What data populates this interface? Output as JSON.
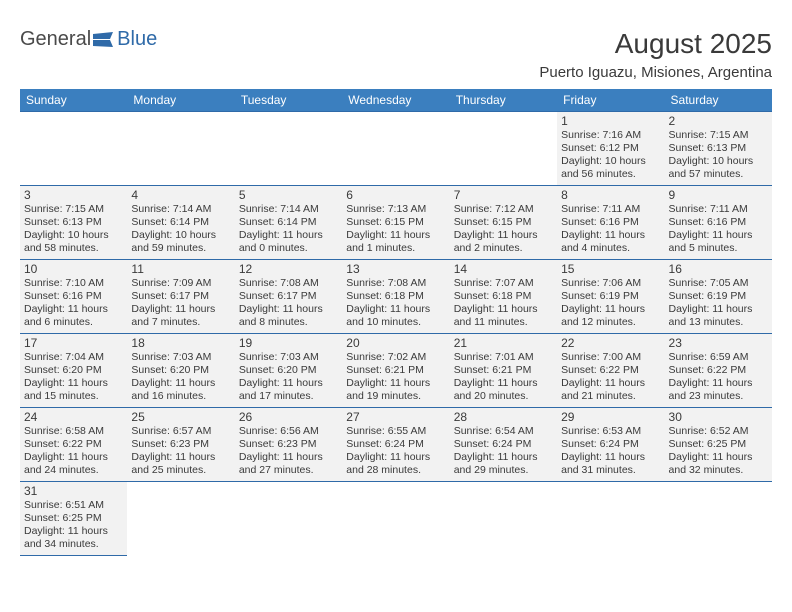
{
  "brand": {
    "a": "General",
    "b": "Blue"
  },
  "title": "August 2025",
  "subtitle": "Puerto Iguazu, Misiones, Argentina",
  "colors": {
    "header_bg": "#3b7fbf",
    "header_text": "#ffffff",
    "cell_bg": "#f2f2f2",
    "border": "#2f6aa8",
    "text": "#3a3a3a",
    "logo_blue": "#2f6aa8"
  },
  "weekday_labels": [
    "Sunday",
    "Monday",
    "Tuesday",
    "Wednesday",
    "Thursday",
    "Friday",
    "Saturday"
  ],
  "first_weekday_index": 5,
  "days": [
    {
      "n": 1,
      "sunrise": "7:16 AM",
      "sunset": "6:12 PM",
      "dl_h": 10,
      "dl_m": 56
    },
    {
      "n": 2,
      "sunrise": "7:15 AM",
      "sunset": "6:13 PM",
      "dl_h": 10,
      "dl_m": 57
    },
    {
      "n": 3,
      "sunrise": "7:15 AM",
      "sunset": "6:13 PM",
      "dl_h": 10,
      "dl_m": 58
    },
    {
      "n": 4,
      "sunrise": "7:14 AM",
      "sunset": "6:14 PM",
      "dl_h": 10,
      "dl_m": 59
    },
    {
      "n": 5,
      "sunrise": "7:14 AM",
      "sunset": "6:14 PM",
      "dl_h": 11,
      "dl_m": 0
    },
    {
      "n": 6,
      "sunrise": "7:13 AM",
      "sunset": "6:15 PM",
      "dl_h": 11,
      "dl_m": 1
    },
    {
      "n": 7,
      "sunrise": "7:12 AM",
      "sunset": "6:15 PM",
      "dl_h": 11,
      "dl_m": 2
    },
    {
      "n": 8,
      "sunrise": "7:11 AM",
      "sunset": "6:16 PM",
      "dl_h": 11,
      "dl_m": 4
    },
    {
      "n": 9,
      "sunrise": "7:11 AM",
      "sunset": "6:16 PM",
      "dl_h": 11,
      "dl_m": 5
    },
    {
      "n": 10,
      "sunrise": "7:10 AM",
      "sunset": "6:16 PM",
      "dl_h": 11,
      "dl_m": 6
    },
    {
      "n": 11,
      "sunrise": "7:09 AM",
      "sunset": "6:17 PM",
      "dl_h": 11,
      "dl_m": 7
    },
    {
      "n": 12,
      "sunrise": "7:08 AM",
      "sunset": "6:17 PM",
      "dl_h": 11,
      "dl_m": 8
    },
    {
      "n": 13,
      "sunrise": "7:08 AM",
      "sunset": "6:18 PM",
      "dl_h": 11,
      "dl_m": 10
    },
    {
      "n": 14,
      "sunrise": "7:07 AM",
      "sunset": "6:18 PM",
      "dl_h": 11,
      "dl_m": 11
    },
    {
      "n": 15,
      "sunrise": "7:06 AM",
      "sunset": "6:19 PM",
      "dl_h": 11,
      "dl_m": 12
    },
    {
      "n": 16,
      "sunrise": "7:05 AM",
      "sunset": "6:19 PM",
      "dl_h": 11,
      "dl_m": 13
    },
    {
      "n": 17,
      "sunrise": "7:04 AM",
      "sunset": "6:20 PM",
      "dl_h": 11,
      "dl_m": 15
    },
    {
      "n": 18,
      "sunrise": "7:03 AM",
      "sunset": "6:20 PM",
      "dl_h": 11,
      "dl_m": 16
    },
    {
      "n": 19,
      "sunrise": "7:03 AM",
      "sunset": "6:20 PM",
      "dl_h": 11,
      "dl_m": 17
    },
    {
      "n": 20,
      "sunrise": "7:02 AM",
      "sunset": "6:21 PM",
      "dl_h": 11,
      "dl_m": 19
    },
    {
      "n": 21,
      "sunrise": "7:01 AM",
      "sunset": "6:21 PM",
      "dl_h": 11,
      "dl_m": 20
    },
    {
      "n": 22,
      "sunrise": "7:00 AM",
      "sunset": "6:22 PM",
      "dl_h": 11,
      "dl_m": 21
    },
    {
      "n": 23,
      "sunrise": "6:59 AM",
      "sunset": "6:22 PM",
      "dl_h": 11,
      "dl_m": 23
    },
    {
      "n": 24,
      "sunrise": "6:58 AM",
      "sunset": "6:22 PM",
      "dl_h": 11,
      "dl_m": 24
    },
    {
      "n": 25,
      "sunrise": "6:57 AM",
      "sunset": "6:23 PM",
      "dl_h": 11,
      "dl_m": 25
    },
    {
      "n": 26,
      "sunrise": "6:56 AM",
      "sunset": "6:23 PM",
      "dl_h": 11,
      "dl_m": 27
    },
    {
      "n": 27,
      "sunrise": "6:55 AM",
      "sunset": "6:24 PM",
      "dl_h": 11,
      "dl_m": 28
    },
    {
      "n": 28,
      "sunrise": "6:54 AM",
      "sunset": "6:24 PM",
      "dl_h": 11,
      "dl_m": 29
    },
    {
      "n": 29,
      "sunrise": "6:53 AM",
      "sunset": "6:24 PM",
      "dl_h": 11,
      "dl_m": 31
    },
    {
      "n": 30,
      "sunrise": "6:52 AM",
      "sunset": "6:25 PM",
      "dl_h": 11,
      "dl_m": 32
    },
    {
      "n": 31,
      "sunrise": "6:51 AM",
      "sunset": "6:25 PM",
      "dl_h": 11,
      "dl_m": 34
    }
  ],
  "labels": {
    "sunrise": "Sunrise:",
    "sunset": "Sunset:",
    "daylight": "Daylight:",
    "hours_word": "hours",
    "and_word": "and",
    "minutes_word": "minutes."
  }
}
